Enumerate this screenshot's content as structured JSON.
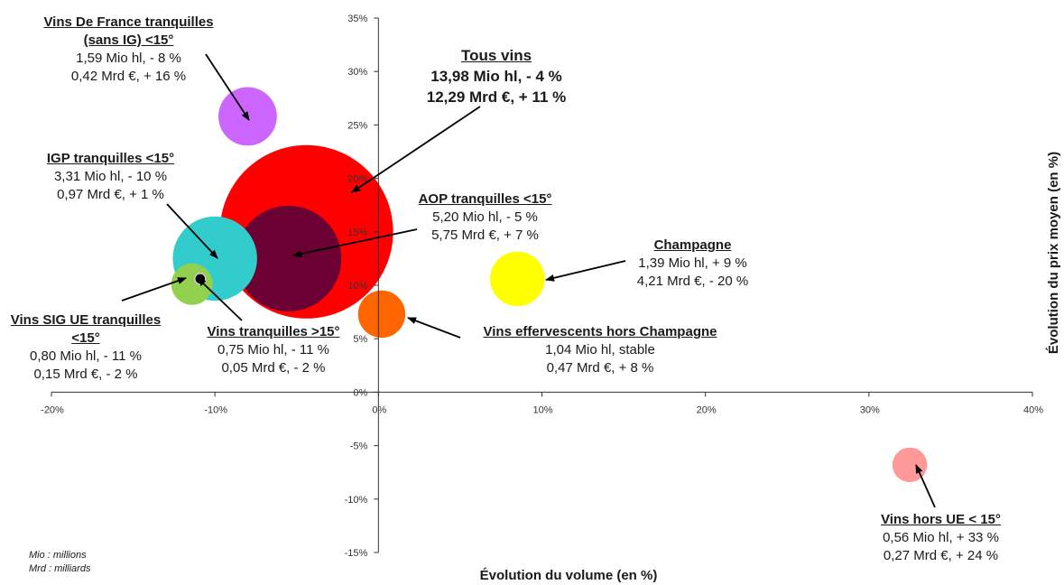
{
  "chart_data": {
    "type": "bubble",
    "xlabel": "Évolution du volume (en %)",
    "ylabel": "Évolution du prix moyen (en %)",
    "xlim": [
      -20,
      40
    ],
    "ylim": [
      -15,
      35
    ],
    "x_ticks": [
      "-20%",
      "-10%",
      "0%",
      "10%",
      "20%",
      "30%",
      "40%"
    ],
    "y_ticks": [
      "35%",
      "30%",
      "25%",
      "20%",
      "15%",
      "10%",
      "5%",
      "0%",
      "-5%",
      "-10%",
      "-15%"
    ],
    "grid": false,
    "points": [
      {
        "name": "Tous vins",
        "x": -4.4,
        "y": 15.0,
        "volume_mio_hl": 13.98,
        "color": "#ff0000",
        "line1": "13,98 Mio hl, - 4 %",
        "line2": "12,29 Mrd €, + 11 %"
      },
      {
        "name": "AOP tranquilles <15°",
        "x": -5.5,
        "y": 12.5,
        "volume_mio_hl": 5.2,
        "color": "#6b0032",
        "line1": "5,20 Mio hl, - 5 %",
        "line2": "5,75 Mrd €, + 7 %"
      },
      {
        "name": "IGP tranquilles <15°",
        "x": -10.0,
        "y": 12.5,
        "volume_mio_hl": 3.31,
        "color": "#33cccc",
        "line1": "3,31 Mio hl, - 10 %",
        "line2": "0,97 Mrd €, + 1 %"
      },
      {
        "name": "Vins De France tranquilles (sans IG) <15°",
        "x": -8.0,
        "y": 25.8,
        "volume_mio_hl": 1.59,
        "color": "#cc66ff",
        "line1": "1,59 Mio hl, - 8 %",
        "line2": "0,42 Mrd €, + 16 %"
      },
      {
        "name": "Vins SIG UE tranquilles <15°",
        "x": -11.4,
        "y": 10.1,
        "volume_mio_hl": 0.8,
        "color": "#92d050",
        "line1": "0,80 Mio hl, - 11 %",
        "line2": "0,15 Mrd €, - 2 %"
      },
      {
        "name": "Vins tranquilles >15°",
        "x": -10.9,
        "y": 10.6,
        "volume_mio_hl": 0.75,
        "color": "#000000",
        "line1": "0,75 Mio hl, - 11 %",
        "line2": "0,05 Mrd €, - 2 %"
      },
      {
        "name": "Vins effervescents hors Champagne",
        "x": 0.2,
        "y": 7.3,
        "volume_mio_hl": 1.04,
        "color": "#ff6600",
        "line1": "1,04 Mio hl, stable",
        "line2": "0,47 Mrd €, + 8 %"
      },
      {
        "name": "Champagne",
        "x": 8.5,
        "y": 10.6,
        "volume_mio_hl": 1.39,
        "color": "#ffff00",
        "line1": "1,39 Mio hl, + 9 %",
        "line2": "4,21 Mrd €, - 20 %"
      },
      {
        "name": "Vins hors UE < 15°",
        "x": 32.5,
        "y": -6.8,
        "volume_mio_hl": 0.56,
        "color": "#ff9999",
        "line1": "0,56 Mio hl, + 33 %",
        "line2": "0,27 Mrd €, + 24 %"
      }
    ]
  },
  "labels": {
    "vdf": {
      "name_l1": "Vins De France tranquilles",
      "name_l2": "(sans IG) <15°"
    },
    "sig": {
      "name_l1": "Vins SIG UE tranquilles",
      "name_l2": "<15°"
    }
  },
  "note": {
    "line1": "Mio : millions",
    "line2": "Mrd : milliards"
  }
}
